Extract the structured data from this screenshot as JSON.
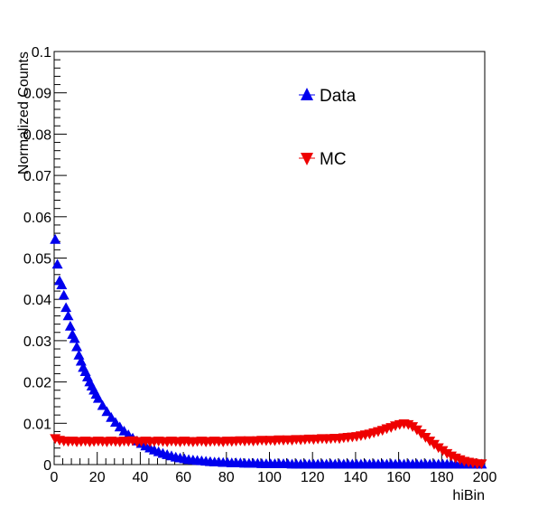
{
  "chart_data": {
    "type": "scatter",
    "title": "",
    "xlabel": "hiBin",
    "ylabel": "Normalized Counts",
    "xlim": [
      0,
      200
    ],
    "ylim": [
      0,
      0.1
    ],
    "x_ticks": [
      0,
      20,
      40,
      60,
      80,
      100,
      120,
      140,
      160,
      180,
      200
    ],
    "x_tick_labels": [
      "0",
      "20",
      "40",
      "60",
      "80",
      "100",
      "120",
      "140",
      "160",
      "180",
      "200"
    ],
    "y_ticks": [
      0,
      0.01,
      0.02,
      0.03,
      0.04,
      0.05,
      0.06,
      0.07,
      0.08,
      0.09,
      0.1
    ],
    "y_tick_labels": [
      "0",
      "0.01",
      "0.02",
      "0.03",
      "0.04",
      "0.05",
      "0.06",
      "0.07",
      "0.08",
      "0.09",
      "0.1"
    ],
    "grid": false,
    "legend_placement": "top-center",
    "series": [
      {
        "name": "Data",
        "color": "#0000ee",
        "marker": "triangle-up",
        "x": [
          0,
          1,
          2,
          3,
          4,
          5,
          6,
          7,
          8,
          9,
          10,
          11,
          12,
          13,
          14,
          15,
          16,
          17,
          18,
          19,
          20,
          22,
          24,
          26,
          28,
          30,
          32,
          34,
          36,
          38,
          40,
          42,
          44,
          46,
          48,
          50,
          52,
          54,
          56,
          58,
          60,
          62,
          64,
          66,
          68,
          70,
          72,
          74,
          76,
          78,
          80,
          82,
          84,
          86,
          88,
          90,
          92,
          94,
          96,
          98,
          100,
          102,
          104,
          106,
          108,
          110,
          112,
          114,
          116,
          118,
          120,
          122,
          124,
          126,
          128,
          130,
          132,
          134,
          136,
          138,
          140,
          142,
          144,
          146,
          148,
          150,
          152,
          154,
          156,
          158,
          160,
          162,
          164,
          166,
          168,
          170,
          172,
          174,
          176,
          178,
          180,
          182,
          184,
          186,
          188,
          190,
          192,
          194,
          196,
          198
        ],
        "y": [
          0.0545,
          0.0485,
          0.0445,
          0.0435,
          0.041,
          0.038,
          0.036,
          0.0335,
          0.0315,
          0.0305,
          0.0285,
          0.0265,
          0.025,
          0.0235,
          0.0225,
          0.0212,
          0.02,
          0.019,
          0.018,
          0.017,
          0.016,
          0.0143,
          0.0128,
          0.0114,
          0.0102,
          0.0091,
          0.0081,
          0.0072,
          0.0064,
          0.0057,
          0.0051,
          0.0045,
          0.004,
          0.0035,
          0.0031,
          0.0027,
          0.0024,
          0.0021,
          0.0018,
          0.0016,
          0.0014,
          0.0012,
          0.0011,
          0.001,
          0.0009,
          0.0008,
          0.0007,
          0.0006,
          0.0006,
          0.0005,
          0.0005,
          0.0004,
          0.0004,
          0.0004,
          0.0003,
          0.0003,
          0.0003,
          0.0003,
          0.0002,
          0.0002,
          0.0002,
          0.0002,
          0.0002,
          0.0002,
          0.0002,
          0.0001,
          0.0001,
          0.0001,
          0.0001,
          0.0001,
          0.0001,
          0.0001,
          0.0001,
          0.0001,
          0.0001,
          0.0001,
          0.0001,
          0.0001,
          0.0001,
          0.0001,
          0.0001,
          0.0001,
          0.0001,
          0.0001,
          0.0001,
          0.0001,
          0.0001,
          0.0001,
          0.0001,
          0.0001,
          0.0001,
          0.0001,
          0.0001,
          0.0001,
          0.0001,
          0.0001,
          0.0001,
          0.0001,
          0.0001,
          0.0001,
          0.0001,
          0.0001,
          0.0001,
          0.0001,
          0.0001,
          0.0001,
          0.0001,
          0.0001,
          0.0001,
          0.0001
        ]
      },
      {
        "name": "MC",
        "color": "#ee0000",
        "marker": "triangle-down",
        "x": [
          0,
          2,
          4,
          6,
          8,
          10,
          12,
          14,
          16,
          18,
          20,
          22,
          24,
          26,
          28,
          30,
          32,
          34,
          36,
          38,
          40,
          42,
          44,
          46,
          48,
          50,
          52,
          54,
          56,
          58,
          60,
          62,
          64,
          66,
          68,
          70,
          72,
          74,
          76,
          78,
          80,
          82,
          84,
          86,
          88,
          90,
          92,
          94,
          96,
          98,
          100,
          102,
          104,
          106,
          108,
          110,
          112,
          114,
          116,
          118,
          120,
          122,
          124,
          126,
          128,
          130,
          132,
          134,
          136,
          138,
          140,
          142,
          144,
          146,
          148,
          150,
          152,
          154,
          156,
          158,
          160,
          162,
          164,
          166,
          168,
          170,
          172,
          174,
          176,
          178,
          180,
          182,
          184,
          186,
          188,
          190,
          192,
          194,
          196,
          198
        ],
        "y": [
          0.0063,
          0.0059,
          0.0057,
          0.0056,
          0.0057,
          0.0055,
          0.0056,
          0.0057,
          0.0055,
          0.0056,
          0.0057,
          0.0056,
          0.0055,
          0.0057,
          0.0056,
          0.0055,
          0.0057,
          0.0056,
          0.0058,
          0.0055,
          0.0056,
          0.0057,
          0.0055,
          0.0056,
          0.0057,
          0.0056,
          0.0055,
          0.0057,
          0.0056,
          0.0055,
          0.0057,
          0.0056,
          0.0055,
          0.0056,
          0.0057,
          0.0055,
          0.0056,
          0.0057,
          0.0056,
          0.0055,
          0.0057,
          0.0056,
          0.0057,
          0.0058,
          0.0057,
          0.0058,
          0.0057,
          0.0058,
          0.0059,
          0.0058,
          0.0059,
          0.0058,
          0.006,
          0.0059,
          0.006,
          0.0059,
          0.0061,
          0.006,
          0.0061,
          0.0062,
          0.0061,
          0.0062,
          0.0063,
          0.0062,
          0.0063,
          0.0064,
          0.0063,
          0.0065,
          0.0066,
          0.0067,
          0.0068,
          0.007,
          0.0072,
          0.0074,
          0.0077,
          0.008,
          0.0083,
          0.0087,
          0.009,
          0.0094,
          0.0097,
          0.0099,
          0.0097,
          0.0092,
          0.0084,
          0.0075,
          0.0066,
          0.0057,
          0.0049,
          0.0041,
          0.0034,
          0.0027,
          0.0021,
          0.0016,
          0.0012,
          0.0008,
          0.0006,
          0.0004,
          0.0002,
          0.0002
        ]
      }
    ]
  }
}
